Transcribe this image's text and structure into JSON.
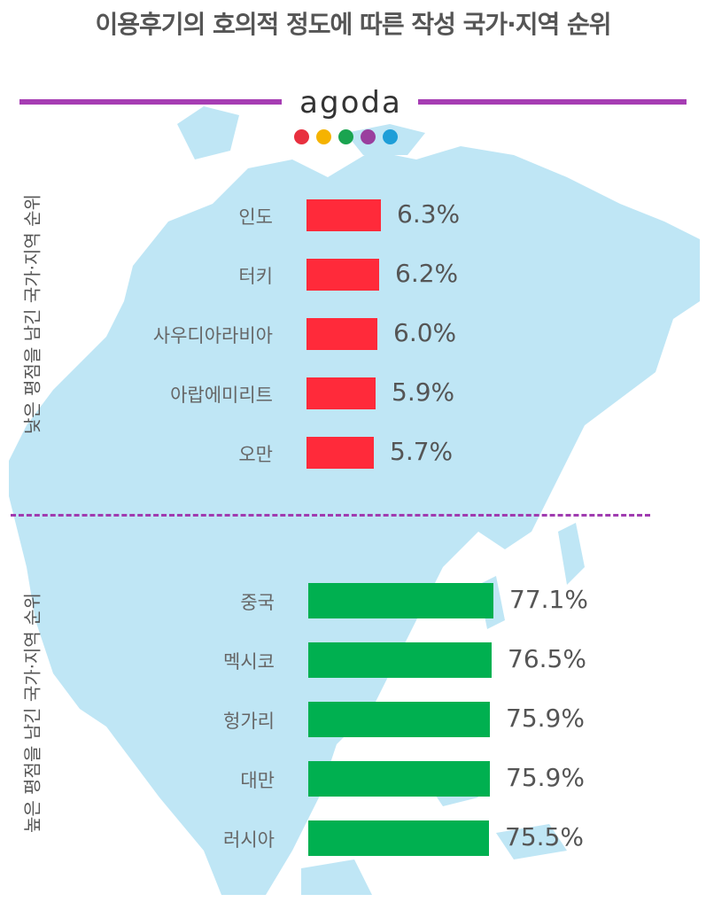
{
  "title": "이용후기의 호의적 정도에 따른 작성 국가·지역 순위",
  "brand": {
    "logo_text": "agoda",
    "line_color": "#a63db3",
    "dot_colors": [
      "#e8303f",
      "#f5b300",
      "#1aa450",
      "#9a3f9e",
      "#1e9ed8"
    ]
  },
  "colors": {
    "map": "#bfe6f5",
    "low_bar": "#ff2a3a",
    "high_bar": "#00b050",
    "divider": "#a03cb0"
  },
  "chart_data": [
    {
      "type": "bar",
      "orientation": "horizontal",
      "ylabel": "낮은 평점을 남긴 국가·지역 순위",
      "categories": [
        "인도",
        "터키",
        "사우디아라비아",
        "아랍에미리트",
        "오만"
      ],
      "values": [
        6.3,
        6.2,
        6.0,
        5.9,
        5.7
      ],
      "value_labels": [
        "6.3%",
        "6.2%",
        "6.0%",
        "5.9%",
        "5.7%"
      ]
    },
    {
      "type": "bar",
      "orientation": "horizontal",
      "ylabel": "높은 평점을 남긴 국가·지역 순위",
      "categories": [
        "중국",
        "멕시코",
        "헝가리",
        "대만",
        "러시아"
      ],
      "values": [
        77.1,
        76.5,
        75.9,
        75.9,
        75.5
      ],
      "value_labels": [
        "77.1%",
        "76.5%",
        "75.9%",
        "75.9%",
        "75.5%"
      ]
    }
  ]
}
